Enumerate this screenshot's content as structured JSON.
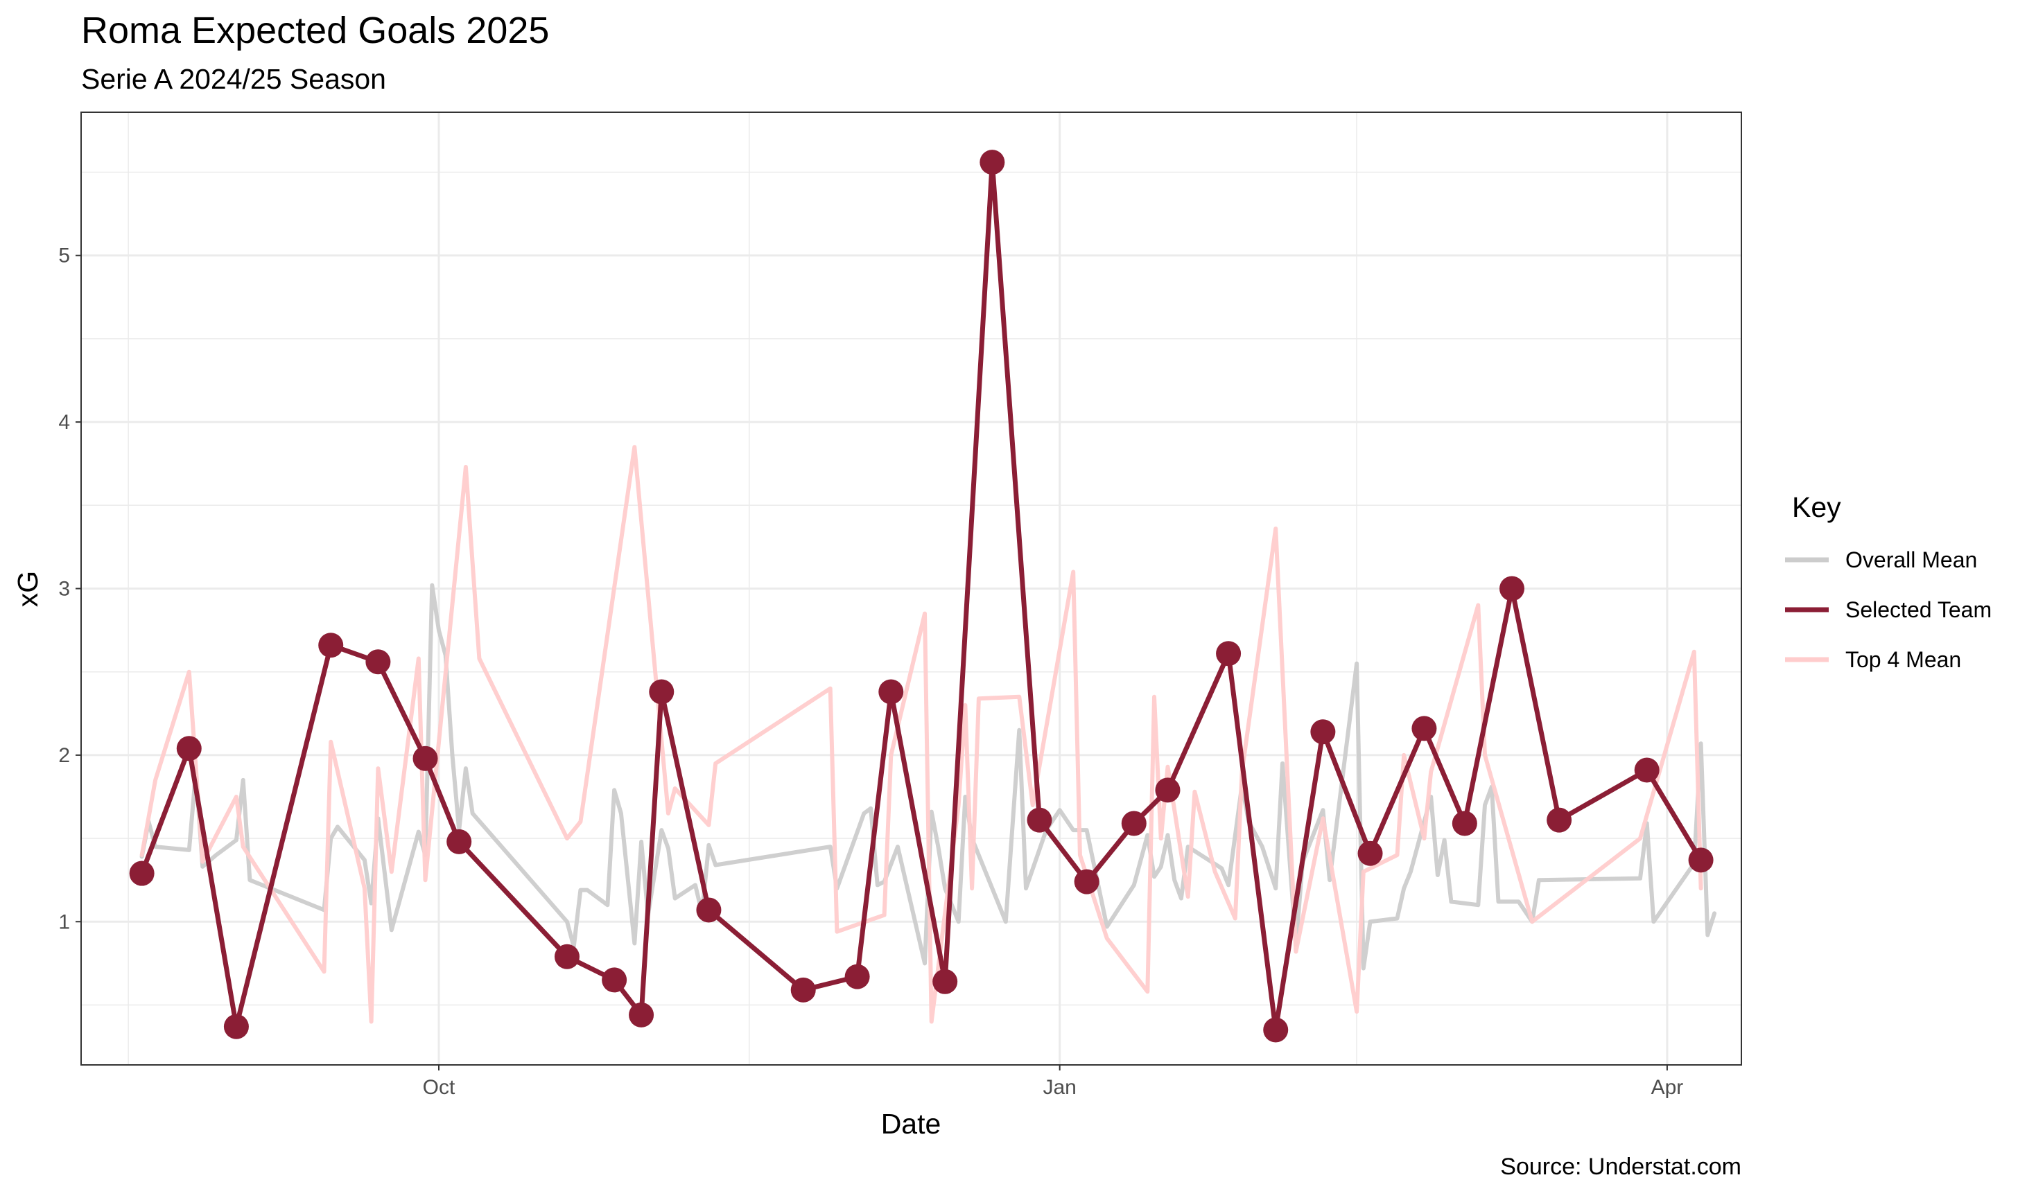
{
  "chart_data": {
    "type": "line",
    "title": "Roma Expected Goals 2025",
    "subtitle": "Serie A 2024/25 Season",
    "xlabel": "Date",
    "ylabel": "xG",
    "caption": "Source: Understat.com",
    "x_ticks": [
      "Oct",
      "Jan",
      "Apr"
    ],
    "y_ticks": [
      1,
      2,
      3,
      4,
      5
    ],
    "xlim": [
      "2024-08-09",
      "2025-04-12"
    ],
    "ylim": [
      0.14,
      5.86
    ],
    "grid": true,
    "legend": {
      "title": "Key",
      "placement": "right",
      "entries": [
        {
          "label": "Overall Mean",
          "color": "#cccccc"
        },
        {
          "label": "Selected Team",
          "color": "#8b1e35"
        },
        {
          "label": "Top 4 Mean",
          "color": "#ffcccc"
        }
      ]
    },
    "series": [
      {
        "name": "Overall Mean",
        "color": "#cccccc",
        "points": [
          [
            "2024-08-18",
            1.39
          ],
          [
            "2024-08-19",
            1.6
          ],
          [
            "2024-08-20",
            1.45
          ],
          [
            "2024-08-25",
            1.43
          ],
          [
            "2024-08-26",
            1.9
          ],
          [
            "2024-08-27",
            1.33
          ],
          [
            "2024-08-29",
            1.4
          ],
          [
            "2024-09-01",
            1.49
          ],
          [
            "2024-09-02",
            1.85
          ],
          [
            "2024-09-03",
            1.25
          ],
          [
            "2024-09-14",
            1.07
          ],
          [
            "2024-09-15",
            1.5
          ],
          [
            "2024-09-16",
            1.57
          ],
          [
            "2024-09-20",
            1.37
          ],
          [
            "2024-09-21",
            1.11
          ],
          [
            "2024-09-22",
            1.62
          ],
          [
            "2024-09-24",
            0.95
          ],
          [
            "2024-09-28",
            1.54
          ],
          [
            "2024-09-29",
            1.4
          ],
          [
            "2024-09-30",
            3.02
          ],
          [
            "2024-10-01",
            2.75
          ],
          [
            "2024-10-02",
            2.6
          ],
          [
            "2024-10-03",
            2.0
          ],
          [
            "2024-10-04",
            1.55
          ],
          [
            "2024-10-05",
            1.92
          ],
          [
            "2024-10-06",
            1.65
          ],
          [
            "2024-10-20",
            1.0
          ],
          [
            "2024-10-21",
            0.85
          ],
          [
            "2024-10-22",
            1.19
          ],
          [
            "2024-10-23",
            1.19
          ],
          [
            "2024-10-26",
            1.1
          ],
          [
            "2024-10-27",
            1.79
          ],
          [
            "2024-10-28",
            1.65
          ],
          [
            "2024-10-30",
            0.87
          ],
          [
            "2024-10-31",
            1.48
          ],
          [
            "2024-11-01",
            1.04
          ],
          [
            "2024-11-03",
            1.55
          ],
          [
            "2024-11-04",
            1.44
          ],
          [
            "2024-11-05",
            1.14
          ],
          [
            "2024-11-08",
            1.22
          ],
          [
            "2024-11-09",
            1.05
          ],
          [
            "2024-11-10",
            1.46
          ],
          [
            "2024-11-11",
            1.34
          ],
          [
            "2024-11-28",
            1.45
          ],
          [
            "2024-11-29",
            1.2
          ],
          [
            "2024-12-03",
            1.65
          ],
          [
            "2024-12-04",
            1.68
          ],
          [
            "2024-12-05",
            1.22
          ],
          [
            "2024-12-06",
            1.24
          ],
          [
            "2024-12-08",
            1.45
          ],
          [
            "2024-12-12",
            0.75
          ],
          [
            "2024-12-13",
            1.66
          ],
          [
            "2024-12-14",
            1.45
          ],
          [
            "2024-12-15",
            1.2
          ],
          [
            "2024-12-17",
            1.0
          ],
          [
            "2024-12-18",
            1.75
          ],
          [
            "2024-12-19",
            1.5
          ],
          [
            "2024-12-24",
            1.0
          ],
          [
            "2024-12-26",
            2.15
          ],
          [
            "2024-12-27",
            1.2
          ],
          [
            "2024-12-30",
            1.55
          ],
          [
            "2025-01-01",
            1.67
          ],
          [
            "2025-01-03",
            1.55
          ],
          [
            "2025-01-05",
            1.55
          ],
          [
            "2025-01-08",
            0.97
          ],
          [
            "2025-01-12",
            1.22
          ],
          [
            "2025-01-14",
            1.52
          ],
          [
            "2025-01-15",
            1.27
          ],
          [
            "2025-01-16",
            1.33
          ],
          [
            "2025-01-17",
            1.52
          ],
          [
            "2025-01-18",
            1.25
          ],
          [
            "2025-01-19",
            1.14
          ],
          [
            "2025-01-20",
            1.45
          ],
          [
            "2025-01-25",
            1.32
          ],
          [
            "2025-01-26",
            1.22
          ],
          [
            "2025-01-28",
            1.82
          ],
          [
            "2025-01-29",
            1.6
          ],
          [
            "2025-01-31",
            1.45
          ],
          [
            "2025-02-02",
            1.2
          ],
          [
            "2025-02-03",
            1.95
          ],
          [
            "2025-02-05",
            0.86
          ],
          [
            "2025-02-06",
            1.36
          ],
          [
            "2025-02-09",
            1.67
          ],
          [
            "2025-02-10",
            1.25
          ],
          [
            "2025-02-14",
            2.55
          ],
          [
            "2025-02-15",
            0.72
          ],
          [
            "2025-02-16",
            1.0
          ],
          [
            "2025-02-20",
            1.02
          ],
          [
            "2025-02-21",
            1.2
          ],
          [
            "2025-02-22",
            1.3
          ],
          [
            "2025-02-25",
            1.75
          ],
          [
            "2025-02-26",
            1.28
          ],
          [
            "2025-02-27",
            1.49
          ],
          [
            "2025-02-28",
            1.12
          ],
          [
            "2025-03-04",
            1.1
          ],
          [
            "2025-03-05",
            1.7
          ],
          [
            "2025-03-06",
            1.81
          ],
          [
            "2025-03-07",
            1.12
          ],
          [
            "2025-03-10",
            1.12
          ],
          [
            "2025-03-12",
            1.0
          ],
          [
            "2025-03-13",
            1.25
          ],
          [
            "2025-03-28",
            1.26
          ],
          [
            "2025-03-29",
            1.59
          ],
          [
            "2025-03-30",
            1.0
          ],
          [
            "2025-04-05",
            1.35
          ],
          [
            "2025-04-06",
            2.07
          ],
          [
            "2025-04-07",
            0.92
          ],
          [
            "2025-04-08",
            1.05
          ]
        ]
      },
      {
        "name": "Top 4 Mean",
        "color": "#ffcccc",
        "points": [
          [
            "2024-08-18",
            1.4
          ],
          [
            "2024-08-20",
            1.85
          ],
          [
            "2024-08-25",
            2.5
          ],
          [
            "2024-08-27",
            1.36
          ],
          [
            "2024-09-01",
            1.75
          ],
          [
            "2024-09-02",
            1.45
          ],
          [
            "2024-09-14",
            0.7
          ],
          [
            "2024-09-15",
            2.08
          ],
          [
            "2024-09-20",
            1.2
          ],
          [
            "2024-09-21",
            0.4
          ],
          [
            "2024-09-22",
            1.92
          ],
          [
            "2024-09-24",
            1.3
          ],
          [
            "2024-09-28",
            2.58
          ],
          [
            "2024-09-29",
            1.25
          ],
          [
            "2024-10-05",
            3.73
          ],
          [
            "2024-10-07",
            2.58
          ],
          [
            "2024-10-20",
            1.5
          ],
          [
            "2024-10-22",
            1.6
          ],
          [
            "2024-10-30",
            3.85
          ],
          [
            "2024-11-04",
            1.65
          ],
          [
            "2024-11-05",
            1.8
          ],
          [
            "2024-11-10",
            1.58
          ],
          [
            "2024-11-11",
            1.95
          ],
          [
            "2024-11-28",
            2.4
          ],
          [
            "2024-11-29",
            0.94
          ],
          [
            "2024-12-06",
            1.04
          ],
          [
            "2024-12-07",
            2.0
          ],
          [
            "2024-12-12",
            2.85
          ],
          [
            "2024-12-13",
            0.4
          ],
          [
            "2024-12-17",
            1.7
          ],
          [
            "2024-12-18",
            2.3
          ],
          [
            "2024-12-19",
            1.2
          ],
          [
            "2024-12-20",
            2.34
          ],
          [
            "2024-12-26",
            2.35
          ],
          [
            "2024-12-28",
            1.7
          ],
          [
            "2025-01-03",
            3.1
          ],
          [
            "2025-01-04",
            1.4
          ],
          [
            "2025-01-08",
            0.9
          ],
          [
            "2025-01-14",
            0.58
          ],
          [
            "2025-01-15",
            2.35
          ],
          [
            "2025-01-16",
            1.5
          ],
          [
            "2025-01-17",
            1.93
          ],
          [
            "2025-01-20",
            1.15
          ],
          [
            "2025-01-21",
            1.78
          ],
          [
            "2025-01-24",
            1.3
          ],
          [
            "2025-01-27",
            1.02
          ],
          [
            "2025-01-28",
            1.9
          ],
          [
            "2025-02-02",
            3.36
          ],
          [
            "2025-02-05",
            0.82
          ],
          [
            "2025-02-09",
            1.62
          ],
          [
            "2025-02-14",
            0.46
          ],
          [
            "2025-02-15",
            1.3
          ],
          [
            "2025-02-20",
            1.4
          ],
          [
            "2025-02-21",
            2.0
          ],
          [
            "2025-02-24",
            1.5
          ],
          [
            "2025-02-25",
            1.9
          ],
          [
            "2025-03-04",
            2.9
          ],
          [
            "2025-03-05",
            2.0
          ],
          [
            "2025-03-12",
            1.0
          ],
          [
            "2025-03-28",
            1.5
          ],
          [
            "2025-04-05",
            2.62
          ],
          [
            "2025-04-06",
            1.2
          ]
        ]
      },
      {
        "name": "Selected Team",
        "color": "#8b1e35",
        "points": [
          [
            "2024-08-18",
            1.29
          ],
          [
            "2024-08-25",
            2.04
          ],
          [
            "2024-09-01",
            0.37
          ],
          [
            "2024-09-15",
            2.66
          ],
          [
            "2024-09-22",
            2.56
          ],
          [
            "2024-09-29",
            1.98
          ],
          [
            "2024-10-04",
            1.48
          ],
          [
            "2024-10-20",
            0.79
          ],
          [
            "2024-10-27",
            0.65
          ],
          [
            "2024-10-31",
            0.44
          ],
          [
            "2024-11-03",
            2.38
          ],
          [
            "2024-11-10",
            1.07
          ],
          [
            "2024-11-24",
            0.59
          ],
          [
            "2024-12-02",
            0.67
          ],
          [
            "2024-12-07",
            2.38
          ],
          [
            "2024-12-15",
            0.64
          ],
          [
            "2024-12-22",
            5.56
          ],
          [
            "2024-12-29",
            1.61
          ],
          [
            "2025-01-05",
            1.24
          ],
          [
            "2025-01-12",
            1.59
          ],
          [
            "2025-01-17",
            1.79
          ],
          [
            "2025-01-26",
            2.61
          ],
          [
            "2025-02-02",
            0.35
          ],
          [
            "2025-02-09",
            2.14
          ],
          [
            "2025-02-16",
            1.41
          ],
          [
            "2025-02-24",
            2.16
          ],
          [
            "2025-03-02",
            1.59
          ],
          [
            "2025-03-09",
            3.0
          ],
          [
            "2025-03-16",
            1.61
          ],
          [
            "2025-03-29",
            1.91
          ],
          [
            "2025-04-06",
            1.37
          ]
        ]
      }
    ]
  }
}
